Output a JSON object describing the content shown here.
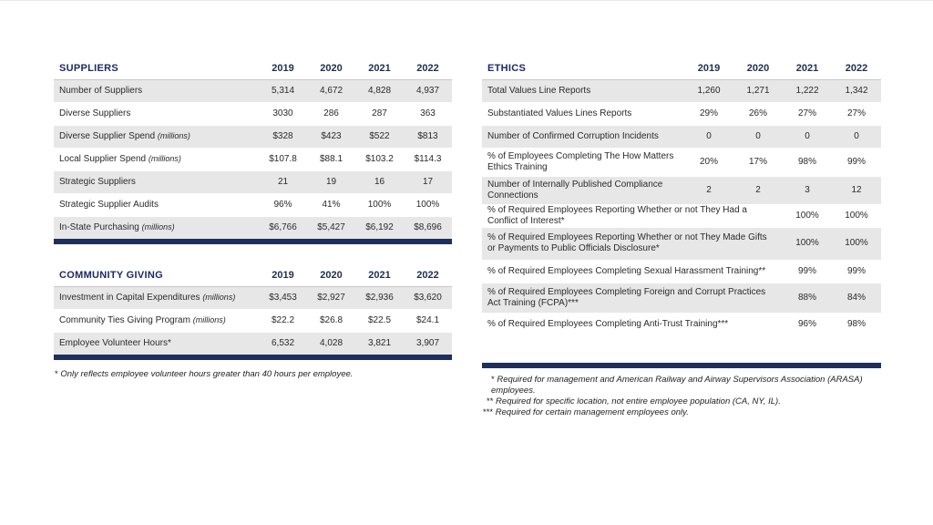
{
  "suppliers": {
    "title": "SUPPLIERS",
    "years": [
      "2019",
      "2020",
      "2021",
      "2022"
    ],
    "rows": [
      {
        "label": "Number of Suppliers",
        "unit": "",
        "values": [
          "5,314",
          "4,672",
          "4,828",
          "4,937"
        ]
      },
      {
        "label": "Diverse Suppliers",
        "unit": "",
        "values": [
          "3030",
          "286",
          "287",
          "363"
        ]
      },
      {
        "label": "Diverse Supplier Spend",
        "unit": "(millions)",
        "values": [
          "$328",
          "$423",
          "$522",
          "$813"
        ]
      },
      {
        "label": "Local Supplier Spend",
        "unit": "(millions)",
        "values": [
          "$107.8",
          "$88.1",
          "$103.2",
          "$114.3"
        ]
      },
      {
        "label": "Strategic Suppliers",
        "unit": "",
        "values": [
          "21",
          "19",
          "16",
          "17"
        ]
      },
      {
        "label": "Strategic Supplier Audits",
        "unit": "",
        "values": [
          "96%",
          "41%",
          "100%",
          "100%"
        ]
      },
      {
        "label": "In-State Purchasing",
        "unit": "(millions)",
        "values": [
          "$6,766",
          "$5,427",
          "$6,192",
          "$8,696"
        ]
      }
    ]
  },
  "community": {
    "title": "COMMUNITY GIVING",
    "years": [
      "2019",
      "2020",
      "2021",
      "2022"
    ],
    "rows": [
      {
        "label": "Investment in Capital Expenditures",
        "unit": "(millions)",
        "values": [
          "$3,453",
          "$2,927",
          "$2,936",
          "$3,620"
        ]
      },
      {
        "label": "Community Ties Giving Program",
        "unit": "(millions)",
        "values": [
          "$22.2",
          "$26.8",
          "$22.5",
          "$24.1"
        ]
      },
      {
        "label": "Employee Volunteer Hours*",
        "unit": "",
        "values": [
          "6,532",
          "4,028",
          "3,821",
          "3,907"
        ]
      }
    ],
    "footnote_mark": "*",
    "footnote": "Only reflects employee volunteer hours greater than 40 hours per employee."
  },
  "ethics": {
    "title": "ETHICS",
    "years": [
      "2019",
      "2020",
      "2021",
      "2022"
    ],
    "rows": [
      {
        "label": "Total Values Line Reports",
        "values": [
          "1,260",
          "1,271",
          "1,222",
          "1,342"
        ]
      },
      {
        "label": "Substantiated Values Lines Reports",
        "values": [
          "29%",
          "26%",
          "27%",
          "27%"
        ]
      },
      {
        "label": "Number of Confirmed Corruption Incidents",
        "values": [
          "0",
          "0",
          "0",
          "0"
        ]
      },
      {
        "label": "% of Employees Completing The How Matters Ethics Training",
        "values": [
          "20%",
          "17%",
          "98%",
          "99%"
        ]
      },
      {
        "label": "Number of Internally Published Compliance Connections",
        "values": [
          "2",
          "2",
          "3",
          "12"
        ]
      },
      {
        "label": "% of Required Employees Reporting Whether or not They Had a Conflict of Interest*",
        "values": [
          "",
          "",
          "100%",
          "100%"
        ]
      },
      {
        "label": "% of Required Employees Reporting Whether or not They Made Gifts or Payments to Public Officials Disclosure*",
        "values": [
          "",
          "",
          "100%",
          "100%"
        ]
      },
      {
        "label": "% of Required Employees Completing Sexual Harassment Training**",
        "values": [
          "",
          "",
          "99%",
          "99%"
        ]
      },
      {
        "label": "% of Required Employees Completing Foreign and Corrupt Practices Act Training (FCPA)***",
        "values": [
          "",
          "",
          "88%",
          "84%"
        ]
      },
      {
        "label": "% of Required Employees Completing Anti-Trust Training***",
        "values": [
          "",
          "",
          "96%",
          "98%"
        ]
      }
    ],
    "footnotes": [
      {
        "mark": "*",
        "text": "Required for management and American Railway and Airway Supervisors Association (ARASA) employees."
      },
      {
        "mark": "**",
        "text": "Required for specific location, not entire employee population (CA, NY, IL)."
      },
      {
        "mark": "***",
        "text": "Required for certain management employees only."
      }
    ]
  }
}
